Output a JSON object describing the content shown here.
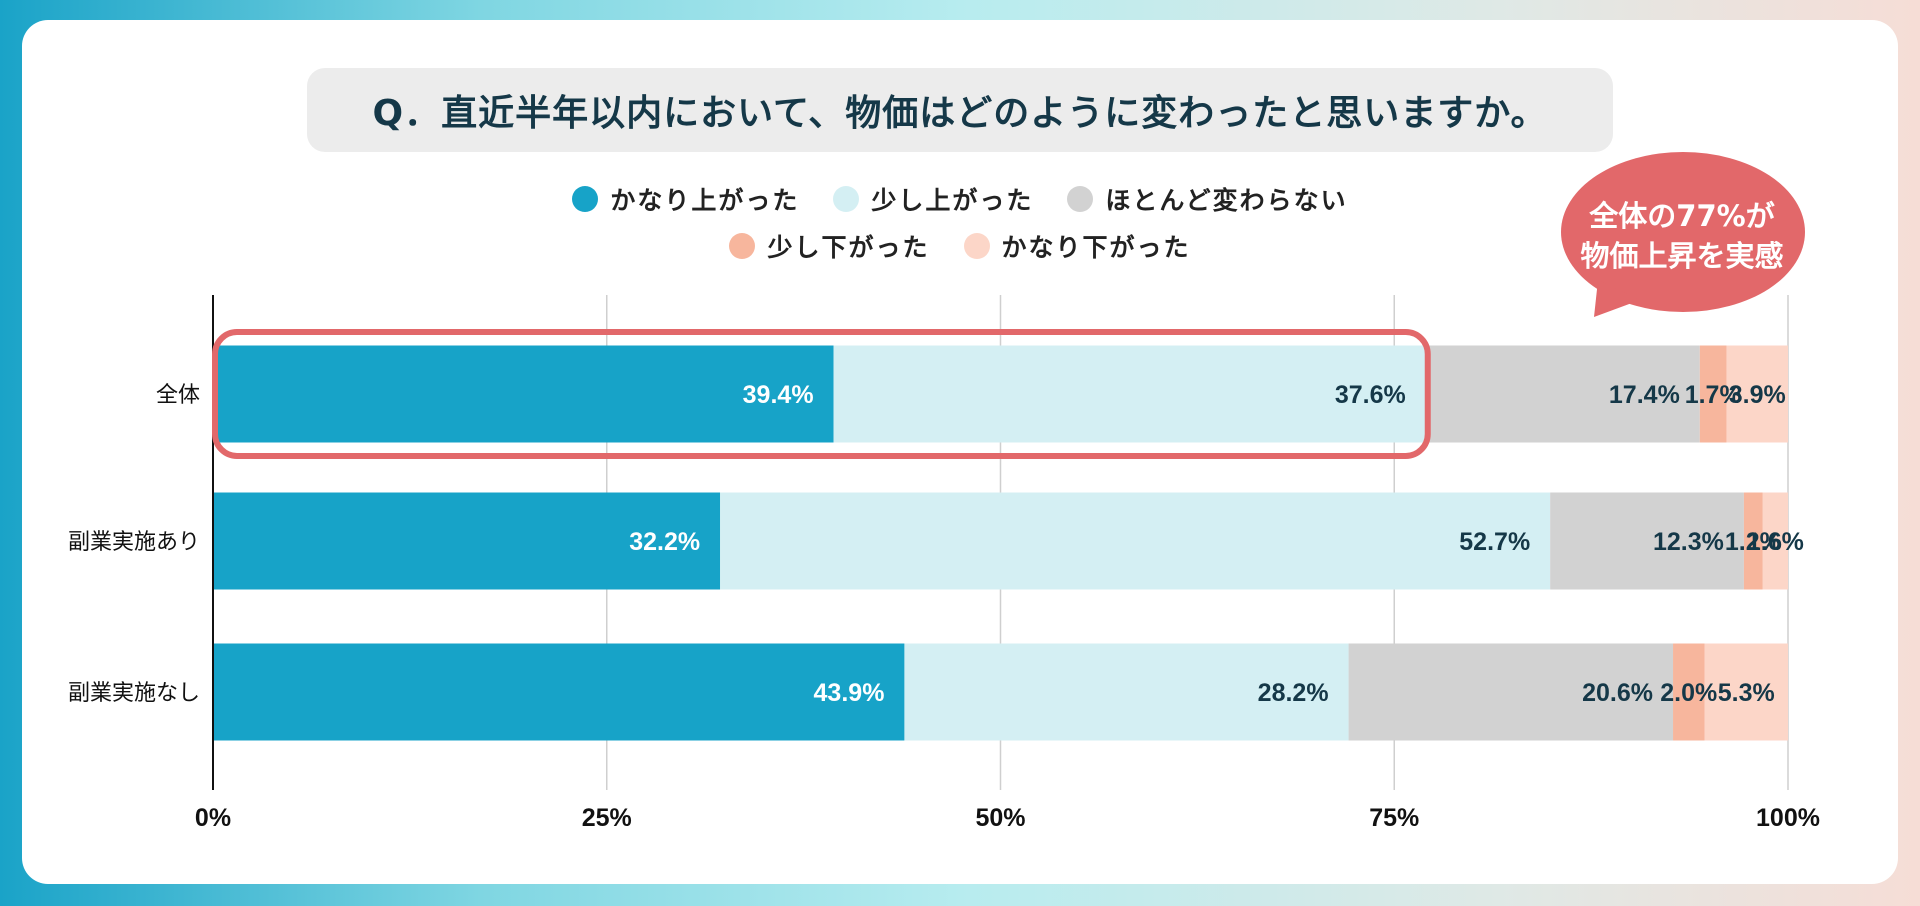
{
  "title": "Q．直近半年以内において、物価はどのように変わったと思いますか。",
  "callout": {
    "line1": "全体の77%が",
    "line2": "物価上昇を実感"
  },
  "colors": {
    "accent": "#e2686a",
    "series": [
      "#17a3c8",
      "#d4eff3",
      "#d2d2d2",
      "#f7b69d",
      "#fcd6c8"
    ],
    "label_dark": "#153848",
    "label_light": "#ffffff"
  },
  "legend": [
    {
      "label": "かなり上がった",
      "color": "#17a3c8"
    },
    {
      "label": "少し上がった",
      "color": "#d4eff3"
    },
    {
      "label": "ほとんど変わらない",
      "color": "#d2d2d2"
    },
    {
      "label": "少し下がった",
      "color": "#f7b69d"
    },
    {
      "label": "かなり下がった",
      "color": "#fcd6c8"
    }
  ],
  "chart_data": {
    "type": "bar",
    "orientation": "horizontal",
    "stacked": true,
    "categories": [
      "全体",
      "副業実施あり",
      "副業実施なし"
    ],
    "series": [
      {
        "name": "かなり上がった",
        "values": [
          39.4,
          32.2,
          43.9
        ],
        "labels": [
          "39.4%",
          "32.2%",
          "43.9%"
        ]
      },
      {
        "name": "少し上がった",
        "values": [
          37.6,
          52.7,
          28.2
        ],
        "labels": [
          "37.6%",
          "52.7%",
          "28.2%"
        ]
      },
      {
        "name": "ほとんど変わらない",
        "values": [
          17.4,
          12.3,
          20.6
        ],
        "labels": [
          "17.4%",
          "12.3%",
          "20.6%"
        ]
      },
      {
        "name": "少し下がった",
        "values": [
          1.7,
          1.2,
          2.0
        ],
        "labels": [
          "1.7%",
          "1.2%",
          "2.0%"
        ]
      },
      {
        "name": "かなり下がった",
        "values": [
          3.9,
          1.6,
          5.3
        ],
        "labels": [
          "3.9%",
          "1.6%",
          "5.3%"
        ]
      }
    ],
    "xlim": [
      0,
      100
    ],
    "xticks": [
      0,
      25,
      50,
      75,
      100
    ],
    "xtick_labels": [
      "0%",
      "25%",
      "50%",
      "75%",
      "100%"
    ],
    "grid": true,
    "highlight": {
      "category": "全体",
      "series": [
        "かなり上がった",
        "少し上がった"
      ]
    }
  }
}
